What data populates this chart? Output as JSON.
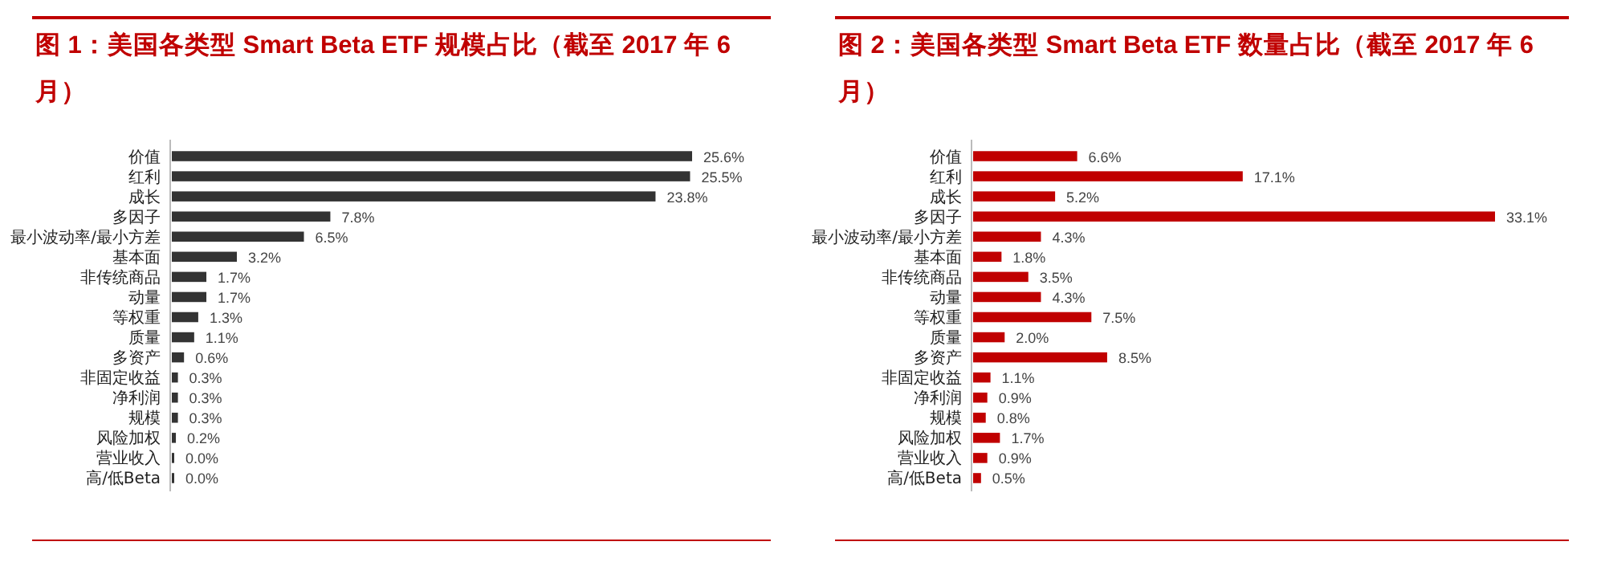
{
  "chart_data": [
    {
      "type": "bar",
      "orientation": "horizontal",
      "title": "图 1：美国各类型 Smart Beta ETF 规模占比（截至 2017 年 6 月）",
      "categories": [
        "价值",
        "红利",
        "成长",
        "多因子",
        "最小波动率/最小方差",
        "基本面",
        "非传统商品",
        "动量",
        "等权重",
        "质量",
        "多资产",
        "非固定收益",
        "净利润",
        "规模",
        "风险加权",
        "营业收入",
        "高/低Beta"
      ],
      "series": [
        {
          "color": "#333333",
          "values": [
            25.6,
            25.5,
            23.8,
            7.8,
            6.5,
            3.2,
            1.7,
            1.7,
            1.3,
            1.1,
            0.6,
            0.3,
            0.3,
            0.3,
            0.2,
            0.0,
            0.0
          ],
          "value_labels": [
            "25.6%",
            "25.5%",
            "23.8%",
            "7.8%",
            "6.5%",
            "3.2%",
            "1.7%",
            "1.7%",
            "1.3%",
            "1.1%",
            "0.6%",
            "0.3%",
            "0.3%",
            "0.3%",
            "0.2%",
            "0.0%",
            "0.0%"
          ]
        }
      ]
    },
    {
      "type": "bar",
      "orientation": "horizontal",
      "title": "图 2：美国各类型 Smart Beta ETF 数量占比（截至 2017 年 6 月）",
      "categories": [
        "价值",
        "红利",
        "成长",
        "多因子",
        "最小波动率/最小方差",
        "基本面",
        "非传统商品",
        "动量",
        "等权重",
        "质量",
        "多资产",
        "非固定收益",
        "净利润",
        "规模",
        "风险加权",
        "营业收入",
        "高/低Beta"
      ],
      "series": [
        {
          "color": "#c00000",
          "values": [
            6.6,
            17.1,
            5.2,
            33.1,
            4.3,
            1.8,
            3.5,
            4.3,
            7.5,
            2.0,
            8.5,
            1.1,
            0.9,
            0.8,
            1.7,
            0.9,
            0.5
          ],
          "value_labels": [
            "6.6%",
            "17.1%",
            "5.2%",
            "33.1%",
            "4.3%",
            "1.8%",
            "3.5%",
            "4.3%",
            "7.5%",
            "2.0%",
            "8.5%",
            "1.1%",
            "0.9%",
            "0.8%",
            "1.7%",
            "0.9%",
            "0.5%"
          ]
        }
      ]
    }
  ]
}
